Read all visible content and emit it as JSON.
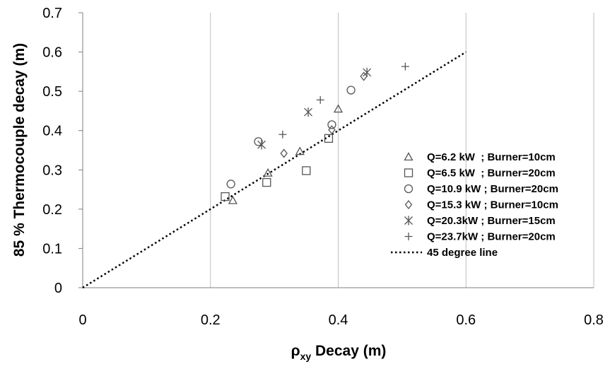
{
  "chart_data": {
    "type": "scatter",
    "title": "",
    "xlabel": {
      "main": "ρ",
      "sub": "xy",
      "rest": " Decay (m)"
    },
    "ylabel": "85 % Thermocouple decay (m)",
    "xlim": [
      0,
      0.8
    ],
    "ylim": [
      0,
      0.7
    ],
    "xticks": [
      "0",
      "0.2",
      "0.4",
      "0.6",
      "0.8"
    ],
    "yticks": [
      "0",
      "0.1",
      "0.2",
      "0.3",
      "0.4",
      "0.5",
      "0.6",
      "0.7"
    ],
    "grid": "vertical",
    "legend_position": "right",
    "series": [
      {
        "name": "Q=6.2 kW  ; Burner=10cm",
        "marker": "triangle",
        "color": "#555555",
        "points": [
          [
            0.235,
            0.222
          ],
          [
            0.29,
            0.292
          ],
          [
            0.34,
            0.347
          ],
          [
            0.4,
            0.455
          ]
        ]
      },
      {
        "name": "Q=6.5 kW  ; Burner=20cm",
        "marker": "square",
        "color": "#555555",
        "points": [
          [
            0.223,
            0.232
          ],
          [
            0.288,
            0.268
          ],
          [
            0.35,
            0.298
          ],
          [
            0.385,
            0.38
          ]
        ]
      },
      {
        "name": "Q=10.9 kW ; Burner=20cm",
        "marker": "circle",
        "color": "#555555",
        "points": [
          [
            0.232,
            0.264
          ],
          [
            0.275,
            0.372
          ],
          [
            0.39,
            0.415
          ],
          [
            0.42,
            0.503
          ]
        ]
      },
      {
        "name": "Q=15.3 kW ; Burner=10cm",
        "marker": "diamond",
        "color": "#555555",
        "points": [
          [
            0.315,
            0.342
          ],
          [
            0.39,
            0.402
          ],
          [
            0.44,
            0.538
          ]
        ]
      },
      {
        "name": "Q=20.3kW ; Burner=15cm",
        "marker": "star",
        "color": "#555555",
        "points": [
          [
            0.28,
            0.364
          ],
          [
            0.353,
            0.447
          ],
          [
            0.445,
            0.548
          ]
        ]
      },
      {
        "name": "Q=23.7kW ; Burner=20cm",
        "marker": "plus",
        "color": "#555555",
        "points": [
          [
            0.313,
            0.39
          ],
          [
            0.372,
            0.478
          ],
          [
            0.505,
            0.563
          ]
        ]
      }
    ],
    "reference_line": {
      "name": "45 degree line",
      "from": [
        0,
        0
      ],
      "to": [
        0.6,
        0.6
      ],
      "style": "dotted",
      "color": "#000000"
    }
  }
}
